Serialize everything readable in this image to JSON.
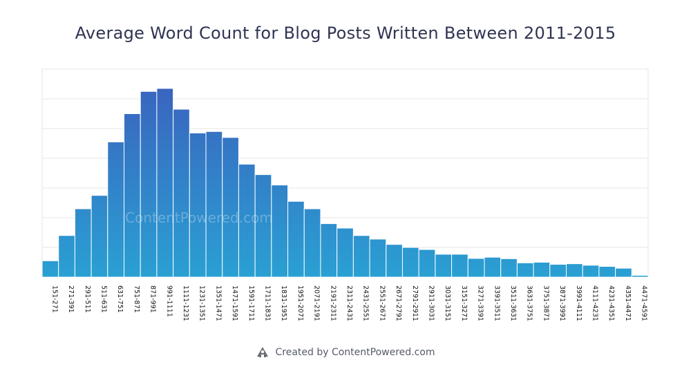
{
  "footer": {
    "text": "Created by ContentPowered.com",
    "icon": "contentpowered-logo-icon"
  },
  "watermark": "ContentPowered.com",
  "colors": {
    "bar_top": "#3b5fbd",
    "bar_bottom": "#2aa0d3",
    "grid": "#e6e6e6",
    "title": "#2f3452"
  },
  "chart_data": {
    "type": "bar",
    "title": "Average Word Count for Blog Posts Written Between 2011-2015",
    "xlabel": "",
    "ylabel": "",
    "ylim": [
      0,
      7
    ],
    "grid": true,
    "categories": [
      "151-271",
      "271-391",
      "291-511",
      "511-631",
      "631-751",
      "751-871",
      "871-991",
      "991-1111",
      "1111-1231",
      "1231-1351",
      "1351-1471",
      "1471-1591",
      "1591-1711",
      "1711-1831",
      "1831-1951",
      "1951-2071",
      "2071-2191",
      "2191-2311",
      "2311-2431",
      "2431-2551",
      "2551-2671",
      "2671-2791",
      "2791-2911",
      "2911-3031",
      "3031-3151",
      "3151-3271",
      "3271-3391",
      "3391-3511",
      "3511-3631",
      "3631-3751",
      "3751-3871",
      "3871-3991",
      "3991-4111",
      "4111-4231",
      "4231-4351",
      "4351-4471",
      "4471-4591"
    ],
    "values": [
      0.55,
      1.4,
      2.3,
      2.75,
      4.55,
      5.5,
      6.25,
      6.35,
      5.65,
      4.85,
      4.9,
      4.7,
      3.8,
      3.45,
      3.1,
      2.55,
      2.3,
      1.8,
      1.65,
      1.4,
      1.28,
      1.1,
      1.0,
      0.93,
      0.77,
      0.77,
      0.63,
      0.67,
      0.62,
      0.48,
      0.5,
      0.43,
      0.45,
      0.4,
      0.36,
      0.3,
      0.06
    ]
  }
}
